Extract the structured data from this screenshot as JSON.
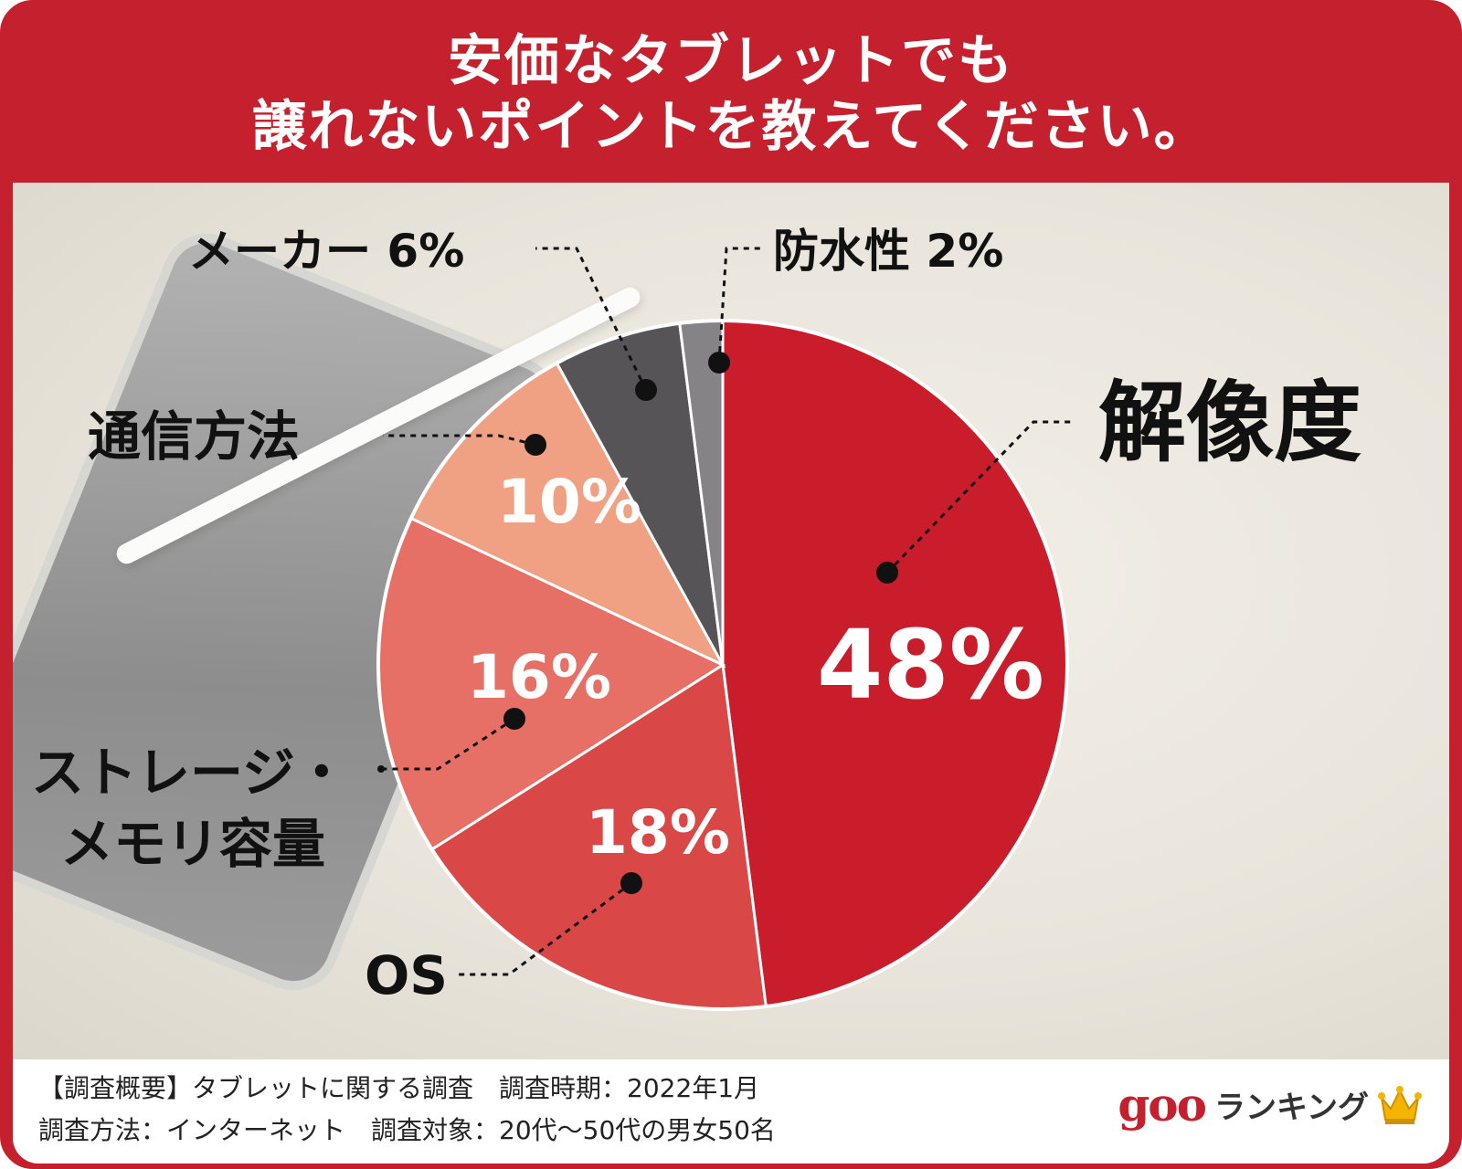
{
  "title": {
    "line1": "安価なタブレットでも",
    "line2": "譲れないポイントを教えてください。"
  },
  "chart_data": {
    "type": "pie",
    "title": "安価なタブレットでも譲れないポイントを教えてください。",
    "unit": "%",
    "slices": [
      {
        "label": "解像度",
        "value": 48,
        "color": "#c91d2b"
      },
      {
        "label": "OS",
        "value": 18,
        "color": "#d94747"
      },
      {
        "label": "ストレージ・メモリ容量",
        "value": 16,
        "color": "#e66f66"
      },
      {
        "label": "通信方法",
        "value": 10,
        "color": "#f1a183"
      },
      {
        "label": "メーカー",
        "value": 6,
        "color": "#565456"
      },
      {
        "label": "防水性",
        "value": 2,
        "color": "#858385"
      }
    ],
    "labels": {
      "resolution": "解像度",
      "os": "OS",
      "storage_line1": "ストレージ・",
      "storage_line2": "メモリ容量",
      "communication": "通信方法",
      "maker": "メーカー 6%",
      "waterproof": "防水性 2%"
    },
    "value_labels": {
      "resolution": "48%",
      "os": "18%",
      "storage": "16%",
      "communication": "10%"
    }
  },
  "footer": {
    "line1": "【調査概要】タブレットに関する調査　調査時期：2022年1月",
    "line2": "調査方法：インターネット　調査対象：20代〜50代の男女50名"
  },
  "logo": {
    "goo": "goo",
    "text": "ランキング",
    "icon": "crown-icon",
    "accent_color": "#c5202e"
  }
}
